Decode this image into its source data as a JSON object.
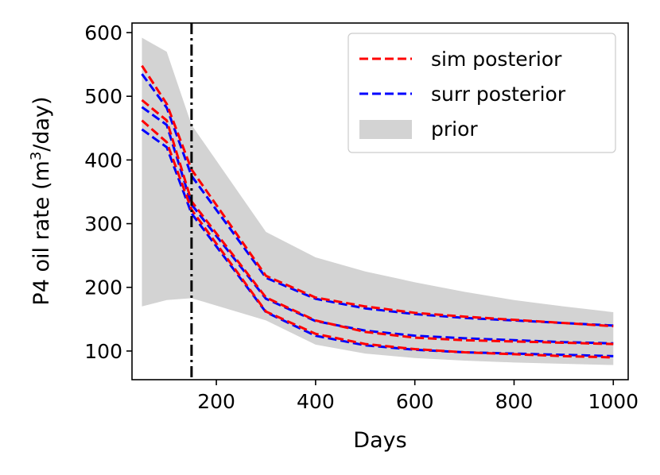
{
  "chart_data": {
    "type": "line",
    "title": "",
    "xlabel": "Days",
    "ylabel_main": "P4 oil rate (m",
    "ylabel_sup": "3",
    "ylabel_tail": "/day)",
    "xlim": [
      30,
      1030
    ],
    "ylim": [
      55,
      615
    ],
    "xticks": [
      200,
      400,
      600,
      800,
      1000
    ],
    "yticks": [
      100,
      200,
      300,
      400,
      500,
      600
    ],
    "vline_x": 150,
    "prior_band": {
      "name": "prior",
      "color": "#d3d3d3",
      "x": [
        50,
        100,
        150,
        300,
        400,
        500,
        600,
        700,
        800,
        900,
        1000
      ],
      "upper": [
        592,
        570,
        455,
        287,
        247,
        225,
        208,
        193,
        180,
        170,
        161
      ],
      "lower": [
        170,
        180,
        183,
        148,
        110,
        96,
        89,
        85,
        82,
        80,
        78
      ]
    },
    "series": [
      {
        "name": "sim posterior",
        "color": "#ff0000",
        "x": [
          50,
          100,
          150,
          300,
          400,
          500,
          600,
          700,
          800,
          900,
          1000
        ],
        "lines": [
          [
            548,
            488,
            385,
            218,
            184,
            170,
            160,
            154,
            149,
            144,
            139
          ],
          [
            494,
            462,
            335,
            184,
            148,
            130,
            121,
            117,
            115,
            113,
            111
          ],
          [
            462,
            428,
            322,
            162,
            127,
            111,
            103,
            98,
            95,
            92,
            90
          ]
        ]
      },
      {
        "name": "surr posterior",
        "color": "#0000ff",
        "x": [
          50,
          100,
          150,
          300,
          400,
          500,
          600,
          700,
          800,
          900,
          1000
        ],
        "lines": [
          [
            535,
            482,
            375,
            215,
            182,
            167,
            158,
            152,
            148,
            144,
            140
          ],
          [
            483,
            455,
            330,
            182,
            147,
            132,
            124,
            120,
            117,
            114,
            112
          ],
          [
            448,
            420,
            316,
            161,
            124,
            109,
            102,
            98,
            96,
            94,
            92
          ]
        ]
      }
    ],
    "legend": [
      "sim posterior",
      "surr posterior",
      "prior"
    ],
    "legend_position": "top-right"
  }
}
